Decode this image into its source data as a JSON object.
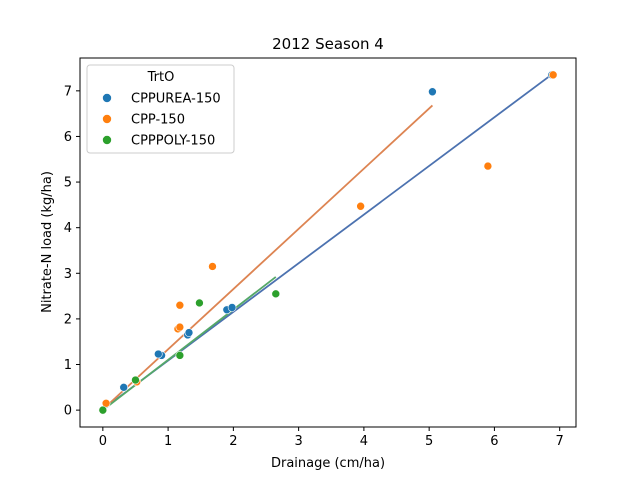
{
  "chart_data": {
    "type": "scatter",
    "title": "2012 Season 4",
    "xlabel": "Drainage (cm/ha)",
    "ylabel": "Nitrate-N load (kg/ha)",
    "xlim": [
      -0.35,
      7.25
    ],
    "ylim": [
      -0.37,
      7.72
    ],
    "xticks": [
      0,
      1,
      2,
      3,
      4,
      5,
      6,
      7
    ],
    "yticks": [
      0,
      1,
      2,
      3,
      4,
      5,
      6,
      7
    ],
    "grid": false,
    "legend": {
      "title": "TrtO",
      "placement": "upper-left"
    },
    "series": [
      {
        "name": "CPPUREA-150",
        "color": "#1f77b4",
        "line_color": "#4c72b0",
        "points": [
          [
            0.0,
            0.0
          ],
          [
            0.32,
            0.5
          ],
          [
            0.9,
            1.2
          ],
          [
            0.85,
            1.23
          ],
          [
            1.3,
            1.65
          ],
          [
            1.32,
            1.7
          ],
          [
            1.9,
            2.2
          ],
          [
            1.98,
            2.25
          ],
          [
            5.05,
            6.98
          ],
          [
            6.88,
            7.35
          ]
        ],
        "fit": [
          [
            0.0,
            0.02
          ],
          [
            6.88,
            7.36
          ]
        ]
      },
      {
        "name": "CPP-150",
        "color": "#ff7f0e",
        "line_color": "#dd8452",
        "points": [
          [
            0.05,
            0.15
          ],
          [
            0.52,
            0.62
          ],
          [
            1.15,
            1.78
          ],
          [
            1.18,
            1.82
          ],
          [
            1.18,
            2.3
          ],
          [
            1.68,
            3.15
          ],
          [
            3.95,
            4.47
          ],
          [
            5.9,
            5.35
          ],
          [
            6.9,
            7.35
          ]
        ],
        "fit": [
          [
            0.05,
            0.08
          ],
          [
            5.05,
            6.68
          ]
        ]
      },
      {
        "name": "CPPPOLY-150",
        "color": "#2ca02c",
        "line_color": "#55a868",
        "points": [
          [
            0.0,
            0.0
          ],
          [
            0.5,
            0.66
          ],
          [
            1.18,
            1.2
          ],
          [
            1.48,
            2.35
          ],
          [
            2.65,
            2.55
          ]
        ],
        "fit": [
          [
            0.0,
            0.0
          ],
          [
            2.65,
            2.92
          ]
        ]
      }
    ]
  }
}
